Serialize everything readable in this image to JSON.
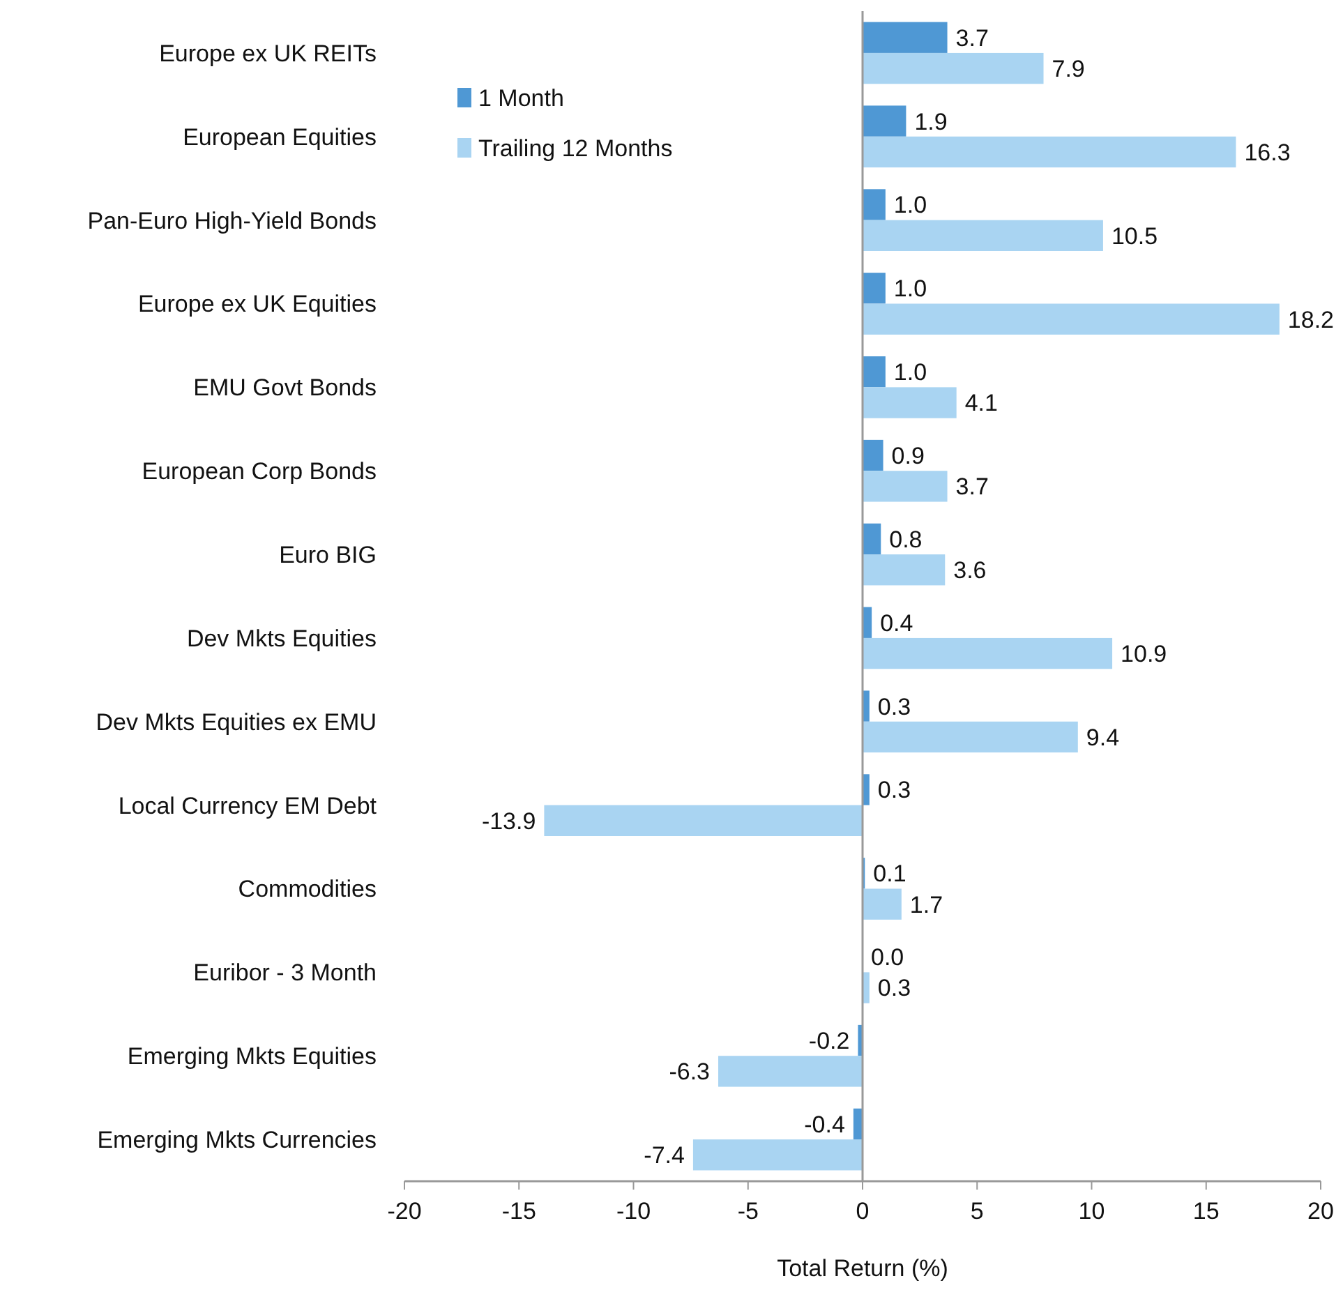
{
  "chart_data": {
    "type": "bar",
    "orientation": "horizontal",
    "xlabel": "Total Return (%)",
    "categories": [
      "Europe ex UK REITs",
      "European Equities",
      "Pan-Euro High-Yield Bonds",
      "Europe ex UK Equities",
      "EMU Govt Bonds",
      "European Corp Bonds",
      "Euro BIG",
      "Dev Mkts Equities",
      "Dev Mkts Equities ex EMU",
      "Local Currency EM Debt",
      "Commodities",
      "Euribor - 3 Month",
      "Emerging Mkts Equities",
      "Emerging Mkts Currencies"
    ],
    "series": [
      {
        "name": "1 Month",
        "color": "#4f98d4",
        "values": [
          3.7,
          1.9,
          1.0,
          1.0,
          1.0,
          0.9,
          0.8,
          0.4,
          0.3,
          0.3,
          0.1,
          0.0,
          -0.2,
          -0.4
        ],
        "value_labels": [
          "3.7",
          "1.9",
          "1.0",
          "1.0",
          "1.0",
          "0.9",
          "0.8",
          "0.4",
          "0.3",
          "0.3",
          "0.1",
          "0.0",
          "-0.2",
          "-0.4"
        ]
      },
      {
        "name": "Trailing 12 Months",
        "color": "#a9d4f2",
        "values": [
          7.9,
          16.3,
          10.5,
          18.2,
          4.1,
          3.7,
          3.6,
          10.9,
          9.4,
          -13.9,
          1.7,
          0.3,
          -6.3,
          -7.4
        ],
        "value_labels": [
          "7.9",
          "16.3",
          "10.5",
          "18.2",
          "4.1",
          "3.7",
          "3.6",
          "10.9",
          "9.4",
          "-13.9",
          "1.7",
          "0.3",
          "-6.3",
          "-7.4"
        ]
      }
    ],
    "xlim": [
      -20,
      20
    ],
    "xticks": [
      -20,
      -15,
      -10,
      -5,
      0,
      5,
      10,
      15,
      20
    ],
    "legend": "top left"
  }
}
